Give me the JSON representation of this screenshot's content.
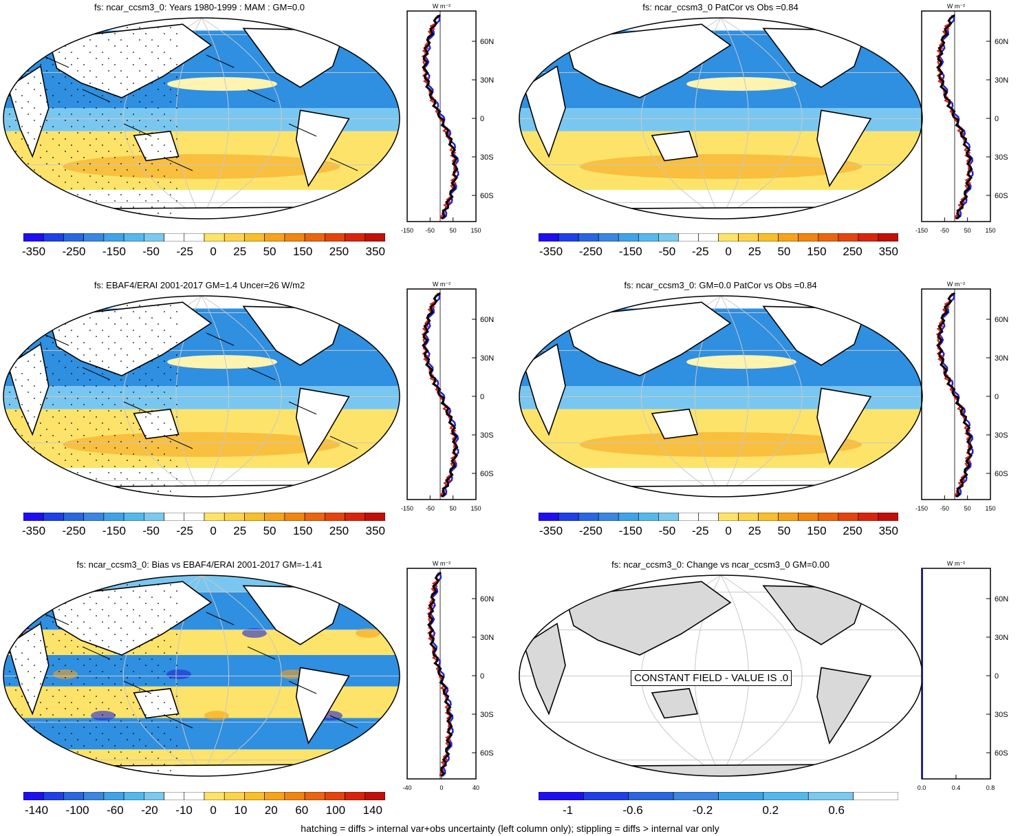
{
  "panels": [
    {
      "title": "fs: ncar_ccsm3_0: Years 1980-1999 : MAM : GM=0.0"
    },
    {
      "title": "fs: ncar_ccsm3_0 PatCor vs Obs =0.84"
    },
    {
      "title": "fs: EBAF4/ERAI 2001-2017 GM=1.4 Uncer=26 W/m2"
    },
    {
      "title": "fs: ncar_ccsm3_0: GM=0.0 PatCor vs Obs =0.84"
    },
    {
      "title": "fs: ncar_ccsm3_0: Bias vs EBAF4/ERAI 2001-2017 GM=-1.41"
    },
    {
      "title": "fs: ncar_ccsm3_0: Change vs ncar_ccsm3_0 GM=0.00"
    }
  ],
  "colorbars": {
    "main": {
      "labels": [
        "-350",
        "-250",
        "-150",
        "-50",
        "-25",
        "0",
        "25",
        "50",
        "150",
        "250",
        "350"
      ]
    },
    "bias": {
      "labels": [
        "-140",
        "-100",
        "-60",
        "-20",
        "-10",
        "0",
        "10",
        "20",
        "60",
        "100",
        "140"
      ]
    },
    "change": {
      "labels": [
        "-1",
        "-0.6",
        "-0.2",
        "0.2",
        "0.6"
      ]
    }
  },
  "profile": {
    "units": "W m⁻²",
    "lat_labels": [
      "60N",
      "30N",
      "0",
      "30S",
      "60S"
    ],
    "x_main": [
      "-150",
      "-50",
      "50",
      "150"
    ],
    "x_bias": [
      "-40",
      "0",
      "40"
    ],
    "x_change": [
      "0.0",
      "0.4",
      "0.8"
    ]
  },
  "constant_box": "CONSTANT FIELD - VALUE IS .0",
  "footer": "hatching = diffs > internal var+obs uncertainty (left column only); stippling = diffs > internal var only",
  "colors": {
    "blue_dark": "#1f27d6",
    "blue_mid": "#2f8fe0",
    "blue_light": "#79c7f0",
    "yellow": "#fde36a",
    "orange": "#f6a21a",
    "red": "#d92a1a",
    "land": "#d9d9d9"
  }
}
